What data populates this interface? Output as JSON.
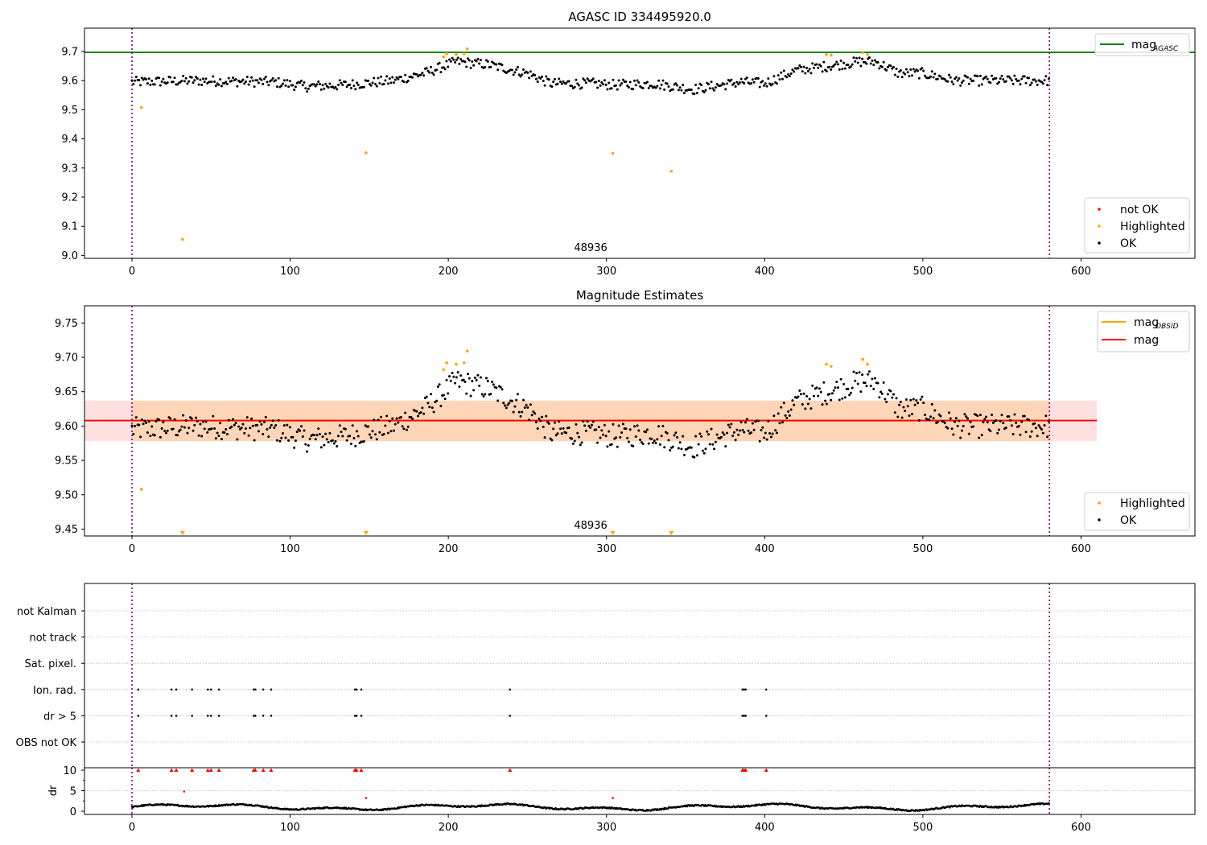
{
  "chart_data": [
    {
      "type": "scatter",
      "title": "AGASC ID 334495920.0",
      "xlim": [
        -30,
        672
      ],
      "ylim": [
        8.99,
        9.78
      ],
      "xticks": [
        0,
        100,
        200,
        300,
        400,
        500,
        600
      ],
      "yticks": [
        "9.0",
        "9.1",
        "9.2",
        "9.3",
        "9.4",
        "9.5",
        "9.6",
        "9.7"
      ],
      "ytick_values": [
        9.0,
        9.1,
        9.2,
        9.3,
        9.4,
        9.5,
        9.6,
        9.7
      ],
      "hline": {
        "name": "mag",
        "sub": "AGASC",
        "value": 9.697,
        "color": "#008000"
      },
      "vlines": [
        0,
        580
      ],
      "obsid_label": {
        "text": "48936",
        "x": 290
      },
      "series": [
        {
          "name": "not OK",
          "color": "#ff0000",
          "points": []
        },
        {
          "name": "Highlighted",
          "color": "#ffa500",
          "points": [
            [
              6,
              9.508
            ],
            [
              32,
              9.055
            ],
            [
              148,
              9.352
            ],
            [
              197,
              9.682
            ],
            [
              199,
              9.692
            ],
            [
              205,
              9.69
            ],
            [
              210,
              9.692
            ],
            [
              212,
              9.709
            ],
            [
              304,
              9.35
            ],
            [
              341,
              9.289
            ],
            [
              439,
              9.69
            ],
            [
              442,
              9.687
            ],
            [
              462,
              9.697
            ],
            [
              465,
              9.69
            ]
          ]
        },
        {
          "name": "OK",
          "color": "#000000",
          "points": "gen-main"
        }
      ],
      "legend_position": "lower right",
      "legend2_position": "upper right"
    },
    {
      "type": "scatter",
      "title": "Magnitude Estimates",
      "xlim": [
        -30,
        672
      ],
      "ylim": [
        9.44,
        9.775
      ],
      "xticks": [
        0,
        100,
        200,
        300,
        400,
        500,
        600
      ],
      "yticks": [
        "9.45",
        "9.50",
        "9.55",
        "9.60",
        "9.65",
        "9.70",
        "9.75"
      ],
      "ytick_values": [
        9.45,
        9.5,
        9.55,
        9.6,
        9.65,
        9.7,
        9.75
      ],
      "mag_line": {
        "name": "mag",
        "value": 9.608,
        "color": "#ff0000",
        "band": [
          9.578,
          9.637
        ],
        "x_range": [
          -30,
          610
        ]
      },
      "mag_obsid_line": {
        "name": "mag",
        "sub": "OBSID",
        "value": 9.608,
        "color": "#ffa500",
        "band": [
          9.578,
          9.637
        ],
        "x_range": [
          0,
          580
        ]
      },
      "vlines": [
        0,
        580
      ],
      "obsid_label": {
        "text": "48936",
        "x": 290
      },
      "series": [
        {
          "name": "Highlighted",
          "color": "#ffa500",
          "points": [
            [
              6,
              9.508
            ],
            [
              197,
              9.682
            ],
            [
              199,
              9.692
            ],
            [
              205,
              9.69
            ],
            [
              210,
              9.692
            ],
            [
              212,
              9.709
            ],
            [
              439,
              9.69
            ],
            [
              442,
              9.687
            ],
            [
              462,
              9.697
            ],
            [
              465,
              9.69
            ]
          ]
        },
        {
          "name": "OK",
          "color": "#000000",
          "points": "gen-main"
        }
      ],
      "clipped_markers": [
        32,
        148,
        304,
        341
      ],
      "legend_position": "lower right",
      "legend2_position": "upper right"
    },
    {
      "type": "scatter",
      "title": "",
      "xlim": [
        -30,
        672
      ],
      "flag_labels": [
        "not Kalman",
        "not track",
        "Sat. pixel.",
        "Ion. rad.",
        "dr > 5",
        "OBS not OK"
      ],
      "flag_points": {
        "Ion. rad.": [
          4,
          25,
          28,
          38,
          48,
          50,
          55,
          77,
          78,
          83,
          88,
          141,
          142,
          145,
          239,
          386,
          387,
          388,
          401
        ],
        "dr > 5": [
          4,
          25,
          28,
          38,
          48,
          50,
          55,
          77,
          78,
          83,
          88,
          141,
          142,
          145,
          239,
          386,
          387,
          388,
          401
        ]
      },
      "vlines": [
        0,
        580
      ],
      "dr_panel": {
        "ylabel": "dr",
        "ylim": [
          0,
          10
        ],
        "yticks": [
          0,
          5,
          10
        ],
        "clipped_x": [
          4,
          25,
          28,
          38,
          48,
          50,
          55,
          77,
          78,
          83,
          88,
          141,
          142,
          145,
          239,
          386,
          387,
          388,
          401
        ],
        "red_points": [
          [
            33,
            4.8
          ],
          [
            148,
            3.2
          ],
          [
            304,
            3.2
          ]
        ],
        "ok_points": "gen-dr"
      },
      "xticks": [
        0,
        100,
        200,
        300,
        400,
        500,
        600
      ]
    }
  ],
  "legend": {
    "top_lower": [
      "not OK",
      "Highlighted",
      "OK"
    ],
    "top_upper": {
      "main": "mag",
      "sub": "AGASC"
    },
    "middle_lower": [
      "Highlighted",
      "OK"
    ],
    "middle_upper": [
      {
        "main": "mag",
        "sub": "OBSID"
      },
      {
        "main": "mag",
        "sub": ""
      }
    ]
  }
}
